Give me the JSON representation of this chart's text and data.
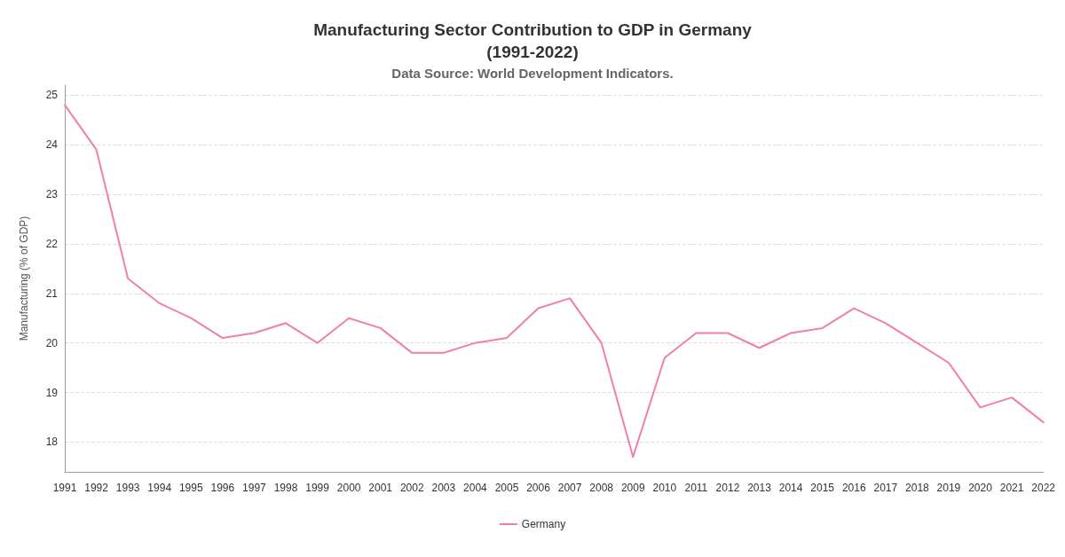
{
  "chart_data": {
    "type": "line",
    "title": "Manufacturing Sector Contribution to GDP in Germany\n(1991-2022)",
    "subtitle": "Data Source: World Development Indicators.",
    "ylabel": "Manufacturing (% of GDP)",
    "categories": [
      "1991",
      "1992",
      "1993",
      "1994",
      "1995",
      "1996",
      "1997",
      "1998",
      "1999",
      "2000",
      "2001",
      "2002",
      "2003",
      "2004",
      "2005",
      "2006",
      "2007",
      "2008",
      "2009",
      "2010",
      "2011",
      "2012",
      "2013",
      "2014",
      "2015",
      "2016",
      "2017",
      "2018",
      "2019",
      "2020",
      "2021",
      "2022"
    ],
    "series": [
      {
        "name": "Germany",
        "color": "#f07fad",
        "values": [
          24.8,
          23.9,
          21.3,
          20.8,
          20.5,
          20.1,
          20.2,
          20.4,
          20.0,
          20.5,
          20.3,
          19.8,
          19.8,
          20.0,
          20.1,
          20.7,
          20.9,
          20.0,
          17.7,
          19.7,
          20.2,
          20.2,
          19.9,
          20.2,
          20.3,
          20.7,
          20.4,
          20.0,
          19.6,
          18.7,
          18.9,
          18.4
        ]
      }
    ],
    "ylim": [
      17.4,
      25.2
    ],
    "yticks": [
      18,
      19,
      20,
      21,
      22,
      23,
      24,
      25
    ],
    "grid": "y",
    "legend": "bottom",
    "marker": "none",
    "line_style": "solid"
  }
}
